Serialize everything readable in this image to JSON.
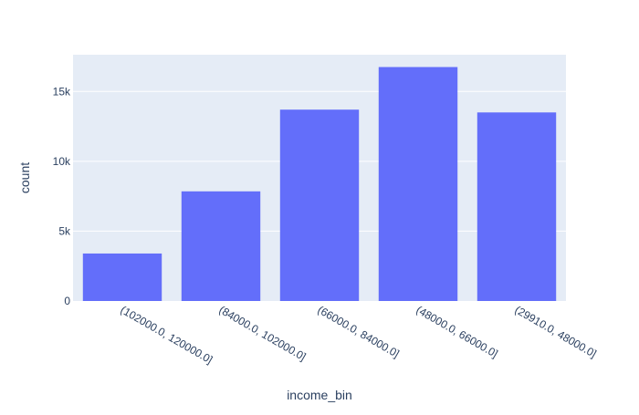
{
  "chart_data": {
    "type": "bar",
    "xlabel": "income_bin",
    "ylabel": "count",
    "categories": [
      "(102000.0, 120000.0]",
      "(84000.0, 102000.0]",
      "(66000.0, 84000.0]",
      "(48000.0, 66000.0]",
      "(29910.0, 48000.0]"
    ],
    "values": [
      3400,
      7850,
      13700,
      16750,
      13500
    ],
    "ylim": [
      0,
      17632
    ],
    "yticks": [
      0,
      5000,
      10000,
      15000
    ],
    "ytick_labels": [
      "0",
      "5k",
      "10k",
      "15k"
    ],
    "grid": true,
    "colors": {
      "bar": "#636efa",
      "plot_bg": "#e5ecf6",
      "grid": "#ffffff",
      "text": "#2a3f5f",
      "page_bg": "#ffffff"
    }
  }
}
